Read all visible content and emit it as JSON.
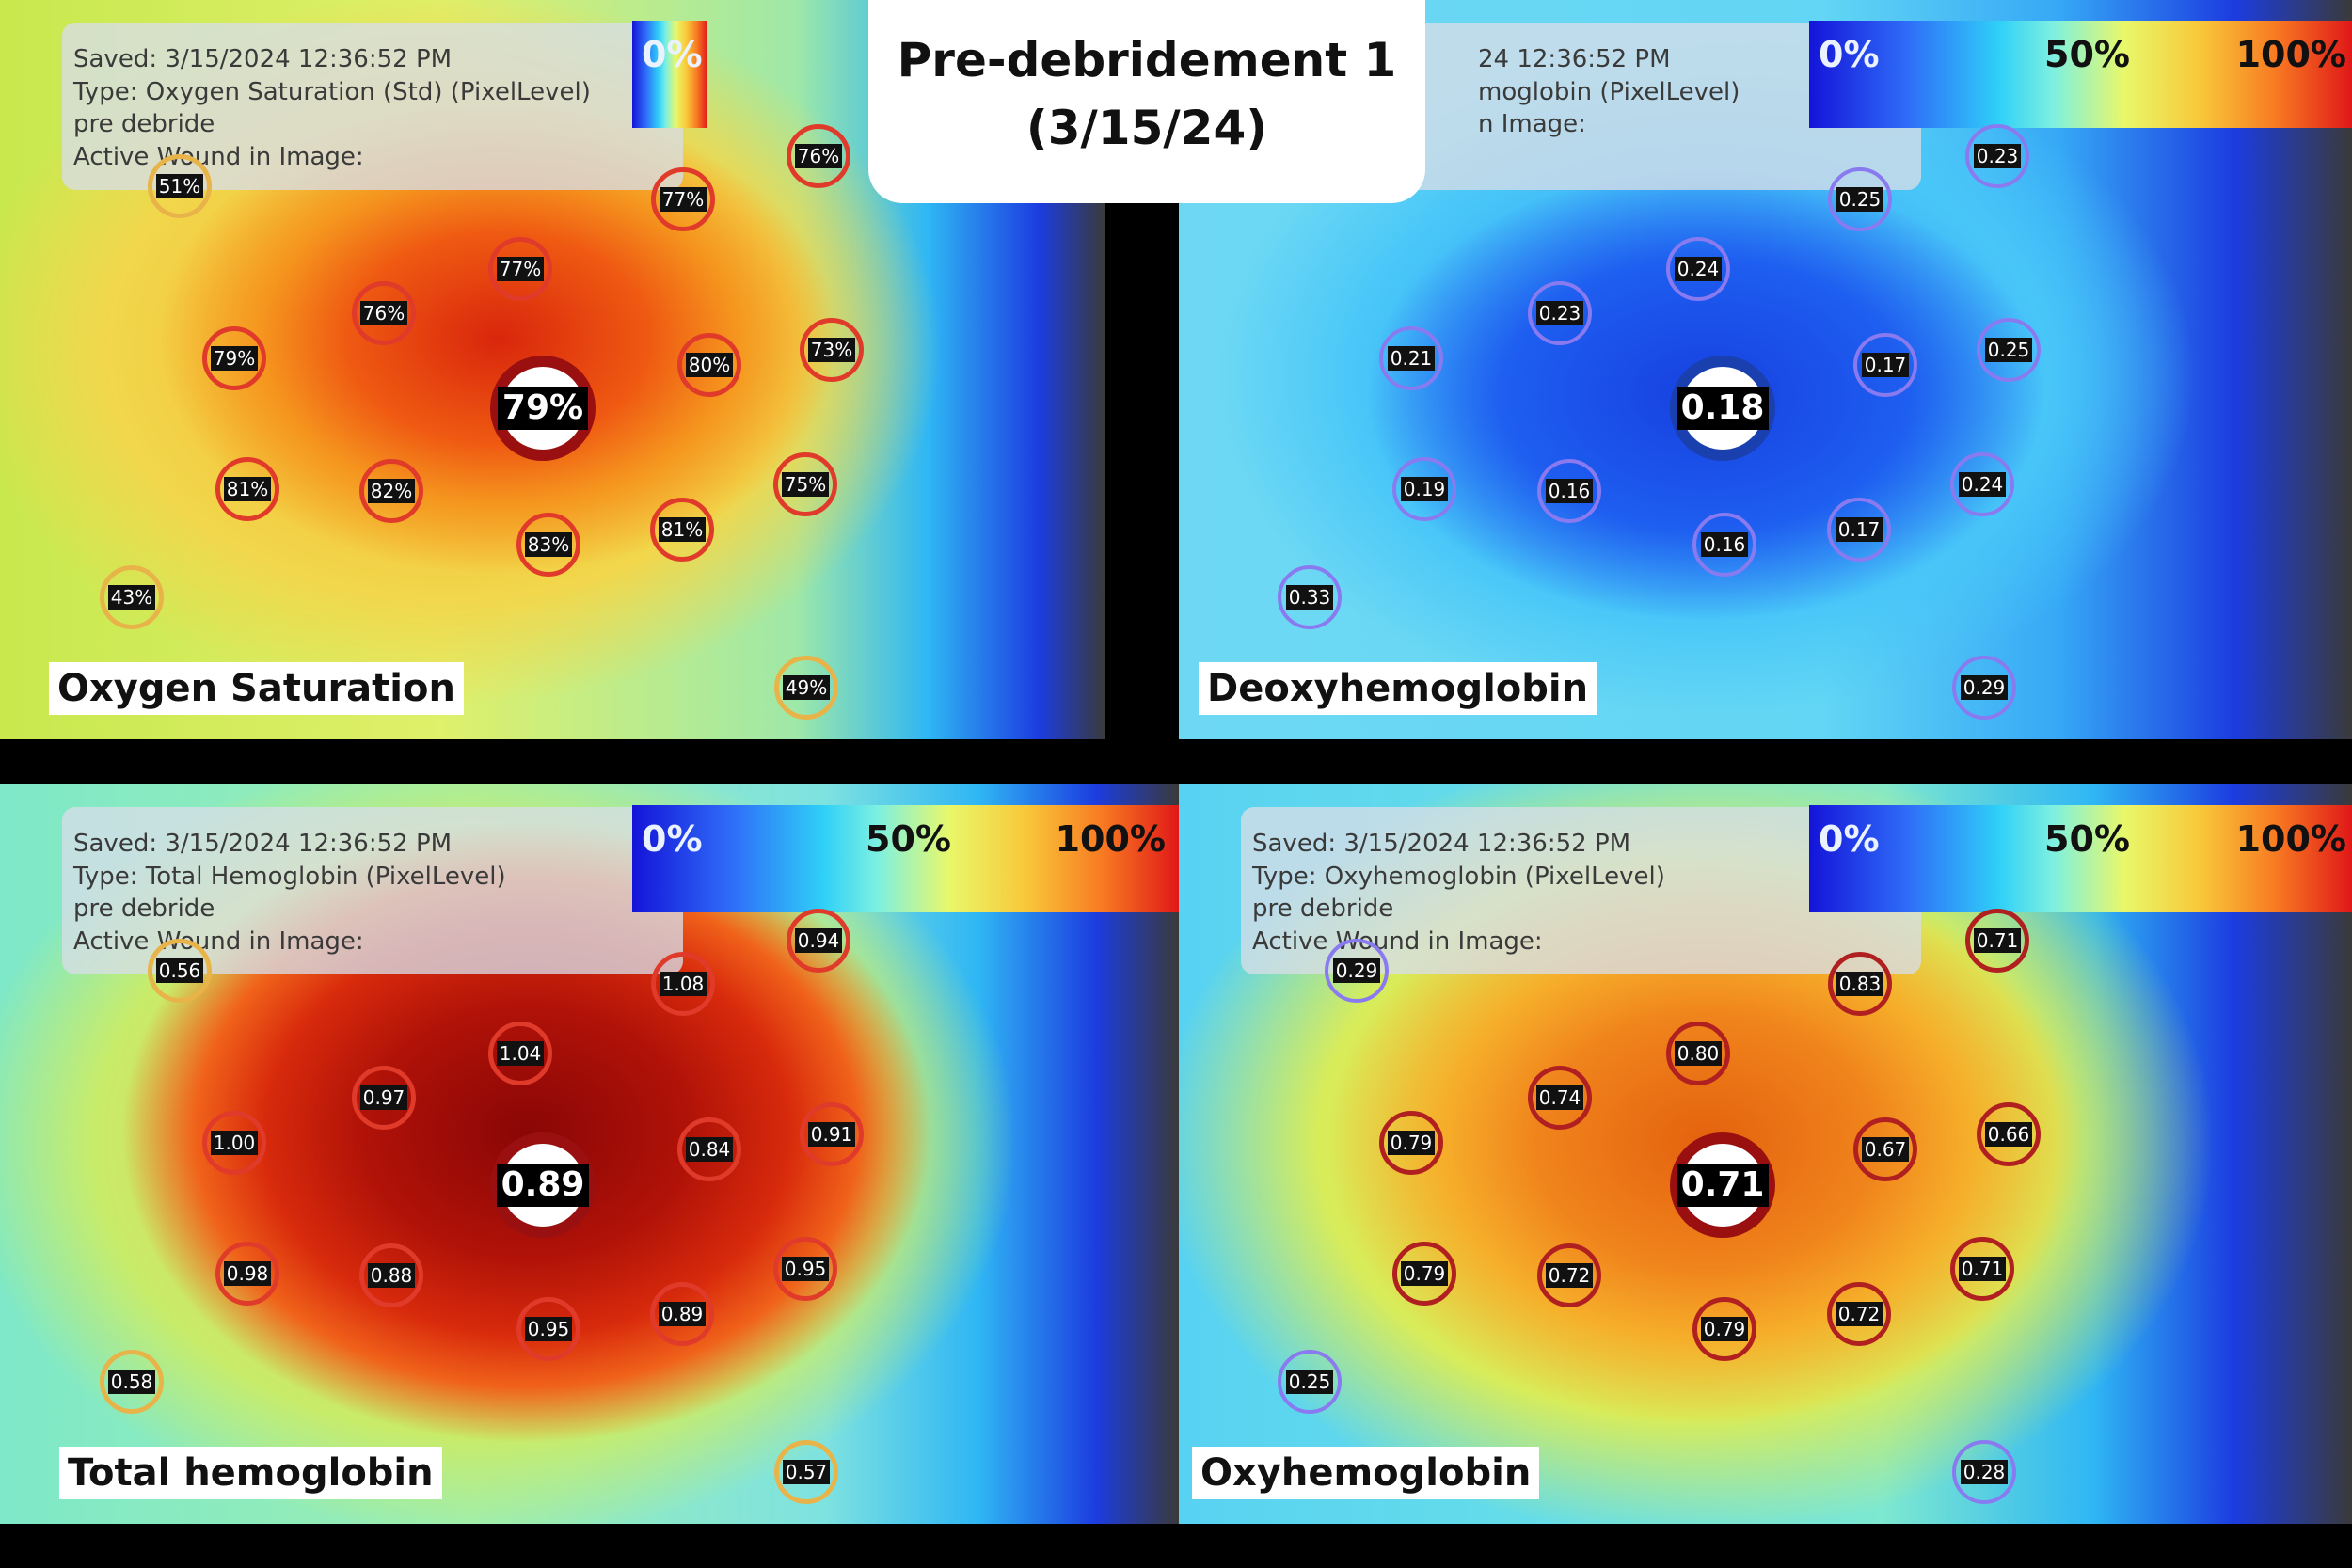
{
  "title": {
    "line1": "Pre-debridement 1",
    "line2": "(3/15/24)"
  },
  "panels": [
    {
      "id": "oxygen-saturation",
      "label": "Oxygen Saturation",
      "info_lines": [
        "Saved: 3/15/2024 12:36:52 PM",
        "Type: Oxygen Saturation (Std) (PixelLevel)",
        "pre debride",
        "Active Wound in Image:"
      ],
      "scale": {
        "min": "0%",
        "mid": "",
        "max": ""
      },
      "average": "79%",
      "theme": "hot",
      "points": [
        "51%",
        "76%",
        "77%",
        "77%",
        "76%",
        "79%",
        "80%",
        "73%",
        "81%",
        "82%",
        "83%",
        "81%",
        "75%",
        "43%",
        "49%"
      ]
    },
    {
      "id": "deoxyhemoglobin",
      "label": "Deoxyhemoglobin",
      "info_lines": [
        "24 12:36:52 PM",
        "moglobin (PixelLevel)",
        "",
        "n Image:"
      ],
      "scale": {
        "min": "0%",
        "mid": "50%",
        "max": "100%"
      },
      "average": "0.18",
      "theme": "cold",
      "points": [
        "0.23",
        "0.25",
        "0.24",
        "0.23",
        "0.21",
        "0.17",
        "0.25",
        "0.19",
        "0.16",
        "0.16",
        "0.17",
        "0.24",
        "0.33",
        "0.29"
      ]
    },
    {
      "id": "total-hemoglobin",
      "label": "Total hemoglobin",
      "info_lines": [
        "Saved: 3/15/2024 12:36:52 PM",
        "Type: Total Hemoglobin (PixelLevel)",
        "pre debride",
        "Active Wound in Image:"
      ],
      "scale": {
        "min": "0%",
        "mid": "50%",
        "max": "100%"
      },
      "average": "0.89",
      "theme": "hot",
      "points": [
        "0.56",
        "0.94",
        "1.08",
        "1.04",
        "0.97",
        "1.00",
        "0.84",
        "0.91",
        "0.98",
        "0.88",
        "0.95",
        "0.89",
        "0.95",
        "0.58",
        "0.57"
      ]
    },
    {
      "id": "oxyhemoglobin",
      "label": "Oxyhemoglobin",
      "info_lines": [
        "Saved: 3/15/2024 12:36:52 PM",
        "Type: Oxyhemoglobin (PixelLevel)",
        "pre debride",
        "Active Wound in Image:"
      ],
      "scale": {
        "min": "0%",
        "mid": "50%",
        "max": "100%"
      },
      "average": "0.71",
      "theme": "warm",
      "points": [
        "0.29",
        "0.71",
        "0.83",
        "0.80",
        "0.74",
        "0.79",
        "0.67",
        "0.66",
        "0.79",
        "0.72",
        "0.79",
        "0.72",
        "0.71",
        "0.25",
        "0.28"
      ]
    }
  ],
  "colors": {
    "hot_ring": "#e03a2a",
    "cold_ring": "#8a7af0",
    "avg_ring_hot": "#9a1010",
    "avg_ring_cold": "#1a40b0"
  }
}
